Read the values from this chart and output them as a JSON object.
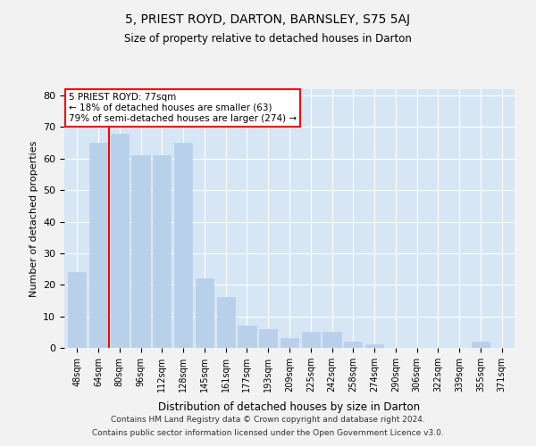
{
  "title1": "5, PRIEST ROYD, DARTON, BARNSLEY, S75 5AJ",
  "title2": "Size of property relative to detached houses in Darton",
  "xlabel": "Distribution of detached houses by size in Darton",
  "ylabel": "Number of detached properties",
  "categories": [
    "48sqm",
    "64sqm",
    "80sqm",
    "96sqm",
    "112sqm",
    "128sqm",
    "145sqm",
    "161sqm",
    "177sqm",
    "193sqm",
    "209sqm",
    "225sqm",
    "242sqm",
    "258sqm",
    "274sqm",
    "290sqm",
    "306sqm",
    "322sqm",
    "339sqm",
    "355sqm",
    "371sqm"
  ],
  "values": [
    24,
    65,
    68,
    61,
    61,
    65,
    22,
    16,
    7,
    6,
    3,
    5,
    5,
    2,
    1,
    0,
    0,
    0,
    0,
    2,
    0
  ],
  "bar_color": "#b8d0ea",
  "grid_color": "#ffffff",
  "bg_color": "#d6e6f5",
  "fig_color": "#f2f2f2",
  "marker_label": "5 PRIEST ROYD: 77sqm",
  "annotation_line1": "← 18% of detached houses are smaller (63)",
  "annotation_line2": "79% of semi-detached houses are larger (274) →",
  "ylim": [
    0,
    82
  ],
  "yticks": [
    0,
    10,
    20,
    30,
    40,
    50,
    60,
    70,
    80
  ],
  "footnote1": "Contains HM Land Registry data © Crown copyright and database right 2024.",
  "footnote2": "Contains public sector information licensed under the Open Government Licence v3.0."
}
